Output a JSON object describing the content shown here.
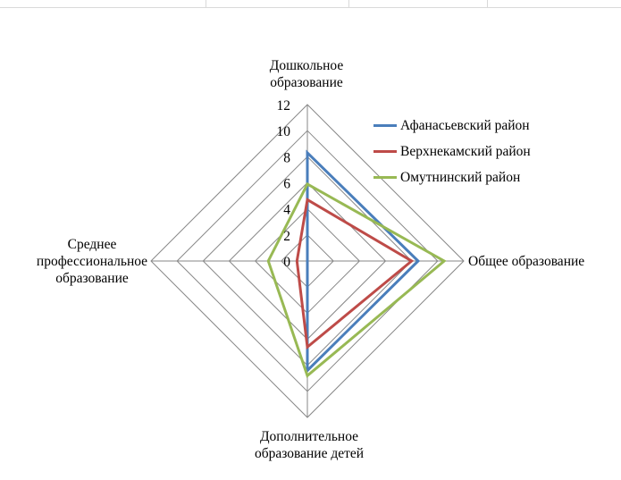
{
  "chart_data": {
    "type": "radar",
    "categories": [
      [
        "Дошкольное",
        "образование"
      ],
      [
        "Общее образование"
      ],
      [
        "Дополнительное",
        "образование детей"
      ],
      [
        "Среднее",
        "профессиональное",
        "образование"
      ]
    ],
    "ticks": [
      "0",
      "2",
      "4",
      "6",
      "8",
      "10",
      "12"
    ],
    "rmax": 12,
    "series": [
      {
        "name": "Афанасьевский район",
        "color": "#4a7ebb",
        "values": [
          8.3,
          8.5,
          8.4,
          0
        ]
      },
      {
        "name": "Верхнекамский район",
        "color": "#be4b48",
        "values": [
          4.7,
          8.0,
          6.6,
          0.8
        ]
      },
      {
        "name": "Омутнинский район",
        "color": "#98b954",
        "values": [
          5.9,
          10.5,
          8.8,
          3.0
        ]
      }
    ],
    "legend_position": "top-right",
    "grid": true
  }
}
